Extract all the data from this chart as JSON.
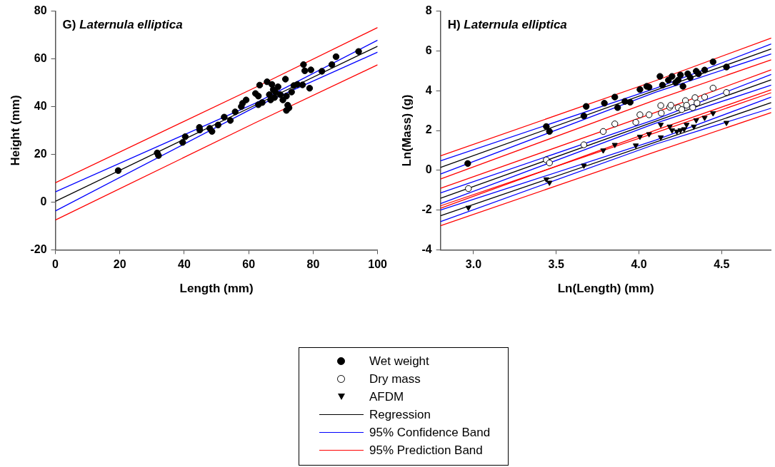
{
  "chart_data": [
    {
      "type": "scatter",
      "title": "G) Laternula elliptica",
      "xlabel": "Length (mm)",
      "ylabel": "Height (mm)",
      "xlim": [
        0,
        100
      ],
      "xticks": [
        0,
        20,
        40,
        60,
        80,
        100
      ],
      "ylim": [
        -20,
        80
      ],
      "yticks": [
        -20,
        0,
        20,
        40,
        60,
        80
      ],
      "grid": false,
      "legend": false,
      "series": [
        {
          "type": "line",
          "color": "#ff0000",
          "x": [
            0,
            62,
            100
          ],
          "values": [
            8.1,
            48.0,
            73.1
          ]
        },
        {
          "type": "line",
          "color": "#ff0000",
          "x": [
            0,
            62,
            100
          ],
          "values": [
            -7.5,
            33.2,
            57.5
          ]
        },
        {
          "type": "line",
          "color": "#0000ff",
          "x": [
            0,
            62,
            100
          ],
          "values": [
            4.3,
            41.4,
            67.8
          ]
        },
        {
          "type": "line",
          "color": "#0000ff",
          "x": [
            0,
            62,
            100
          ],
          "values": [
            -3.7,
            39.8,
            62.8
          ]
        },
        {
          "type": "line",
          "color": "#000000",
          "x": [
            0,
            62,
            100
          ],
          "values": [
            0.3,
            40.6,
            65.3
          ]
        },
        {
          "type": "scatter",
          "marker": "circle",
          "color": "#000000",
          "x": [
            19.5,
            31.6,
            32.0,
            39.5,
            40.3,
            44.7,
            44.8,
            47.9,
            48.6,
            50.5,
            52.4,
            54.3,
            55.8,
            57.7,
            58.1,
            59.2,
            62.1,
            63.0,
            63.4,
            63.0,
            64.2,
            65.7,
            66.4,
            66.8,
            67.2,
            67.6,
            68.0,
            68.3,
            69.1,
            69.8,
            70.6,
            71.4,
            71.7,
            72.1,
            72.5,
            71.7,
            73.3,
            74.0,
            75.1,
            76.7,
            78.9,
            77.4,
            79.3,
            77.0,
            82.7,
            85.8,
            87.1,
            94.1
          ],
          "values": [
            13.2,
            20.6,
            19.5,
            25.0,
            27.4,
            31.3,
            30.2,
            30.9,
            29.6,
            32.3,
            35.6,
            34.2,
            37.8,
            40.0,
            41.4,
            42.8,
            45.5,
            44.4,
            49.0,
            40.8,
            41.7,
            50.4,
            45.0,
            42.8,
            49.3,
            47.1,
            43.8,
            46.1,
            48.3,
            45.0,
            42.8,
            51.5,
            44.4,
            40.6,
            39.5,
            38.4,
            46.1,
            48.8,
            49.3,
            49.1,
            47.7,
            55.0,
            55.4,
            57.6,
            54.8,
            57.6,
            60.9,
            63.1
          ]
        }
      ]
    },
    {
      "type": "scatter",
      "title": "H) Laternula elliptica",
      "xlabel": "Ln(Length) (mm)",
      "ylabel": "Ln(Mass) (g)",
      "xlim": [
        2.8,
        4.8
      ],
      "xticks": [
        {
          "value": 3,
          "label": "3.0"
        },
        3.5,
        {
          "value": 4,
          "label": "4.0"
        },
        4.5
      ],
      "ylim": [
        -4,
        8
      ],
      "yticks": [
        -4,
        -2,
        0,
        2,
        4,
        6,
        8
      ],
      "grid": false,
      "legend": "bottom",
      "series": [
        {
          "name": "Wet weight",
          "type": "scatter",
          "marker": "circle",
          "color": "#000000",
          "x": [
            2.965,
            3.44,
            3.459,
            3.681,
            3.667,
            3.791,
            3.854,
            3.871,
            3.915,
            3.947,
            4.006,
            4.047,
            4.061,
            4.127,
            4.142,
            4.178,
            4.2,
            4.222,
            4.237,
            4.251,
            4.266,
            4.295,
            4.31,
            4.346,
            4.36,
            4.397,
            4.448,
            4.529
          ],
          "values": [
            0.34,
            2.2,
            1.95,
            3.21,
            2.73,
            3.37,
            3.68,
            3.15,
            3.46,
            3.42,
            4.06,
            4.22,
            4.18,
            4.72,
            4.28,
            4.53,
            4.72,
            4.41,
            4.53,
            4.79,
            4.22,
            4.85,
            4.66,
            4.98,
            4.85,
            5.04,
            5.45,
            5.19
          ]
        },
        {
          "name": "Dry mass",
          "type": "scatter",
          "marker": "circle-open",
          "color": "#000000",
          "x": [
            2.969,
            3.44,
            3.459,
            3.667,
            3.784,
            3.854,
            3.981,
            4.006,
            4.061,
            4.132,
            4.135,
            4.186,
            4.193,
            4.237,
            4.259,
            4.281,
            4.288,
            4.325,
            4.339,
            4.351,
            4.397,
            4.448,
            4.529
          ],
          "values": [
            -0.92,
            0.52,
            0.37,
            1.28,
            1.95,
            2.33,
            2.41,
            2.79,
            2.79,
            3.25,
            2.87,
            3.17,
            3.27,
            3.15,
            3.05,
            3.5,
            3.27,
            3.15,
            3.65,
            3.38,
            3.68,
            4.13,
            3.91
          ]
        },
        {
          "name": "AFDM",
          "type": "scatter",
          "marker": "triangle-down",
          "color": "#000000",
          "x": [
            2.969,
            3.44,
            3.459,
            3.667,
            3.784,
            3.854,
            3.981,
            4.006,
            4.061,
            4.132,
            4.132,
            4.186,
            4.2,
            4.229,
            4.251,
            4.273,
            4.288,
            4.332,
            4.346,
            4.397,
            4.448,
            4.529
          ],
          "values": [
            -1.88,
            -0.45,
            -0.62,
            0.24,
            1.0,
            1.28,
            1.25,
            1.69,
            1.82,
            2.29,
            1.66,
            2.2,
            2.01,
            1.95,
            2.01,
            2.07,
            2.29,
            2.2,
            2.52,
            2.64,
            2.87,
            2.39
          ]
        },
        {
          "name": "Regression",
          "type": "line",
          "color": "#000000",
          "x": [
            2.8,
            4.1,
            4.8
          ],
          "values": [
            0.14,
            4.02,
            6.1
          ]
        },
        {
          "name": "95% Confidence Band",
          "type": "line",
          "color": "#0000ff",
          "x": [
            2.8,
            4.1,
            4.8
          ],
          "values": [
            0.47,
            4.12,
            6.35
          ]
        },
        {
          "name": "95% Prediction Band",
          "type": "line",
          "color": "#ff0000",
          "x": [
            2.8,
            4.1,
            4.8
          ],
          "values": [
            0.72,
            4.5,
            6.65
          ]
        },
        {
          "type": "line",
          "color": "#0000ff",
          "x": [
            2.8,
            4.1,
            4.8
          ],
          "values": [
            -0.19,
            3.92,
            5.85
          ]
        },
        {
          "type": "line",
          "color": "#ff0000",
          "x": [
            2.8,
            4.1,
            4.8
          ],
          "values": [
            -0.44,
            3.54,
            5.55
          ]
        },
        {
          "type": "line",
          "color": "#000000",
          "x": [
            2.8,
            4.1,
            4.8
          ],
          "values": [
            -1.41,
            2.46,
            4.55
          ]
        },
        {
          "type": "line",
          "color": "#0000ff",
          "x": [
            2.8,
            4.1,
            4.8
          ],
          "values": [
            -1.14,
            2.56,
            4.82
          ]
        },
        {
          "type": "line",
          "color": "#0000ff",
          "x": [
            2.8,
            4.1,
            4.8
          ],
          "values": [
            -1.68,
            2.36,
            4.28
          ]
        },
        {
          "type": "line",
          "color": "#ff0000",
          "x": [
            2.8,
            4.1,
            4.8
          ],
          "values": [
            -0.91,
            2.91,
            5.05
          ]
        },
        {
          "type": "line",
          "color": "#ff0000",
          "x": [
            2.8,
            4.1,
            4.8
          ],
          "values": [
            -1.91,
            2.01,
            4.05
          ]
        },
        {
          "type": "line",
          "color": "#000000",
          "x": [
            2.8,
            4.1,
            4.8
          ],
          "values": [
            -2.29,
            1.41,
            3.4
          ]
        },
        {
          "type": "line",
          "color": "#0000ff",
          "x": [
            2.8,
            4.1,
            4.8
          ],
          "values": [
            -2.0,
            1.51,
            3.68
          ]
        },
        {
          "type": "line",
          "color": "#0000ff",
          "x": [
            2.8,
            4.1,
            4.8
          ],
          "values": [
            -2.58,
            1.31,
            3.12
          ]
        },
        {
          "type": "line",
          "color": "#ff0000",
          "x": [
            2.8,
            4.1,
            4.8
          ],
          "values": [
            -1.79,
            1.89,
            3.9
          ]
        },
        {
          "type": "line",
          "color": "#ff0000",
          "x": [
            2.8,
            4.1,
            4.8
          ],
          "values": [
            -2.79,
            0.93,
            2.9
          ]
        }
      ]
    }
  ]
}
